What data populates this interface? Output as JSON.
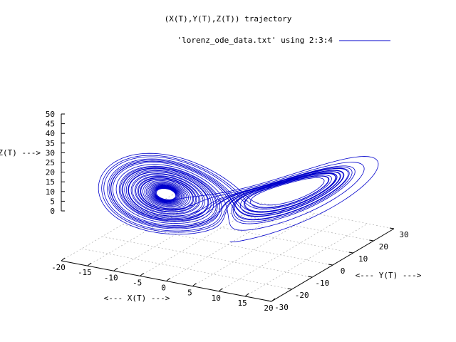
{
  "chart_data": {
    "type": "line",
    "title": "(X(T),Y(T),Z(T)) trajectory",
    "xlabel": "<--- X(T) --->",
    "ylabel": "<--- Y(T) --->",
    "zlabel": "Z(T) --->",
    "xlim": [
      -20,
      20
    ],
    "ylim": [
      -30,
      30
    ],
    "zlim": [
      0,
      50
    ],
    "x_ticks": [
      "-20",
      "-15",
      "-10",
      "-5",
      "0",
      "5",
      "10",
      "15",
      "20"
    ],
    "y_ticks": [
      "-30",
      "-20",
      "-10",
      "0",
      "10",
      "20",
      "30"
    ],
    "z_ticks": [
      "0",
      "5",
      "10",
      "15",
      "20",
      "25",
      "30",
      "35",
      "40",
      "45",
      "50"
    ],
    "grid": true,
    "legend_position": "top-right",
    "series": [
      {
        "name": "'lorenz_ode_data.txt' using 2:3:4",
        "color": "#0000cc",
        "generator": {
          "system": "lorenz",
          "sigma": 10,
          "rho": 28,
          "beta": 2.6666667,
          "initial": [
            0,
            1,
            1
          ],
          "dt": 0.005,
          "steps": 8000
        }
      }
    ]
  }
}
